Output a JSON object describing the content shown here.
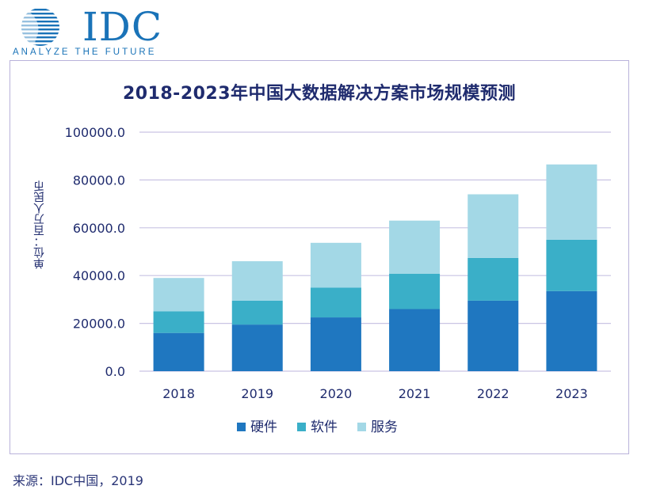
{
  "logo": {
    "brand": "IDC",
    "tagline": "ANALYZE THE FUTURE"
  },
  "chart_data": {
    "type": "bar",
    "stacked": true,
    "title": "2018-2023年中国大数据解决方案市场规模预测",
    "ylabel": "单位：百万人民币",
    "xlabel": "",
    "ylim": [
      0,
      100000
    ],
    "yticks": [
      "100000.0",
      "80000.0",
      "60000.0",
      "40000.0",
      "20000.0",
      "0.0"
    ],
    "categories": [
      "2018",
      "2019",
      "2020",
      "2021",
      "2022",
      "2023"
    ],
    "series": [
      {
        "name": "硬件",
        "color": "#1f77c0",
        "values": [
          16000,
          19500,
          22500,
          26000,
          29500,
          33500
        ]
      },
      {
        "name": "软件",
        "color": "#3aafc8",
        "values": [
          9000,
          10000,
          12500,
          14800,
          17900,
          21500
        ]
      },
      {
        "name": "服务",
        "color": "#a3d8e6",
        "values": [
          14000,
          16500,
          18700,
          22200,
          26600,
          31500
        ]
      }
    ],
    "grid": true,
    "legend": "bottom"
  },
  "source": "来源：IDC中国，2019"
}
